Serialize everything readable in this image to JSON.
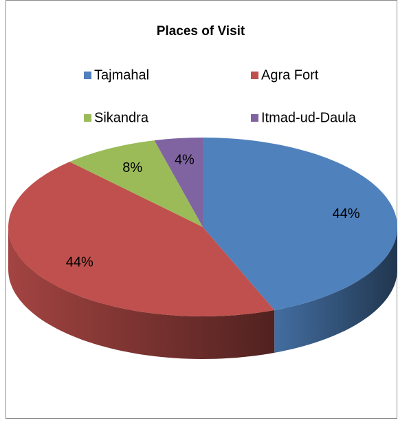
{
  "chart_data": {
    "type": "pie3d",
    "title": "Places of Visit",
    "categories": [
      "Tajmahal",
      "Agra Fort",
      "Sikandra",
      "Itmad-ud-Daula"
    ],
    "values": [
      44,
      44,
      8,
      4
    ],
    "value_labels": [
      "44%",
      "44%",
      "8%",
      "4%"
    ],
    "colors": [
      "#4f81bd",
      "#c0504d",
      "#9bbb59",
      "#8064a2"
    ],
    "legend": "top"
  }
}
